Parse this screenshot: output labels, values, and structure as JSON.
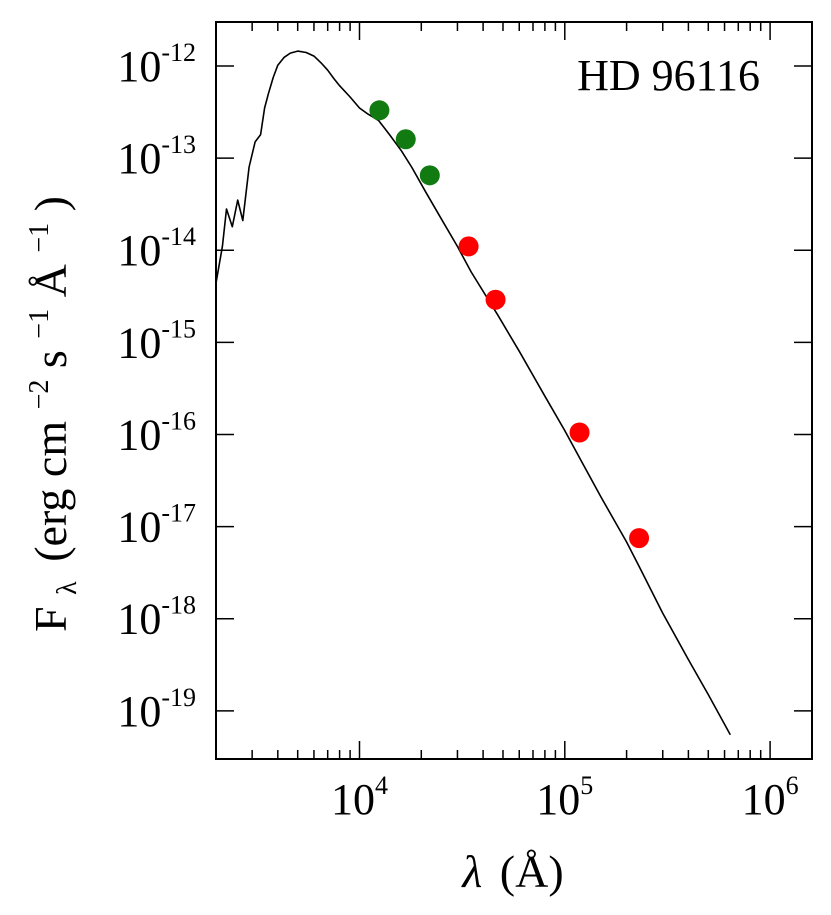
{
  "chart_data": {
    "type": "scatter",
    "title": "",
    "annotation": "HD 96116",
    "xlabel": {
      "symbol": "λ",
      "unit": "(Å)"
    },
    "ylabel": {
      "symbol": "F",
      "sub": "λ",
      "main": "(erg cm",
      "e1": "−2",
      "s": " s",
      "e2": "−1",
      "ang": " Å",
      "e3": "−1",
      "close": ")"
    },
    "xscale": "log",
    "yscale": "log",
    "xlim": [
      2000,
      1600000
    ],
    "ylim": [
      3e-20,
      3e-12
    ],
    "x_ticks": [
      {
        "value": 10000,
        "base": "10",
        "exp": "4"
      },
      {
        "value": 100000,
        "base": "10",
        "exp": "5"
      },
      {
        "value": 1000000,
        "base": "10",
        "exp": "6"
      }
    ],
    "y_ticks": [
      {
        "value": 1e-12,
        "base": "10",
        "exp": "-12"
      },
      {
        "value": 1e-13,
        "base": "10",
        "exp": "-13"
      },
      {
        "value": 1e-14,
        "base": "10",
        "exp": "-14"
      },
      {
        "value": 1e-15,
        "base": "10",
        "exp": "-15"
      },
      {
        "value": 1e-16,
        "base": "10",
        "exp": "-16"
      },
      {
        "value": 1e-17,
        "base": "10",
        "exp": "-17"
      },
      {
        "value": 1e-18,
        "base": "10",
        "exp": "-18"
      },
      {
        "value": 1e-19,
        "base": "10",
        "exp": "-19"
      }
    ],
    "grid": false,
    "model_sed": {
      "color": "#000000",
      "x": [
        2000,
        2150,
        2250,
        2400,
        2550,
        2700,
        2900,
        3100,
        3300,
        3450,
        3600,
        3800,
        4000,
        4300,
        4600,
        5000,
        5500,
        6000,
        6500,
        7000,
        7500,
        8000,
        9000,
        10000,
        11000,
        12400,
        14000,
        16000,
        18000,
        21000,
        25000,
        30000,
        35000,
        47000,
        60000,
        80000,
        100000,
        120000,
        150000,
        200000,
        230000,
        300000,
        400000,
        500000,
        640000
      ],
      "y": [
        4.4e-15,
        1.1e-14,
        2.8e-14,
        1.8e-14,
        3.5e-14,
        2.1e-14,
        8e-14,
        1.5e-13,
        1.8e-13,
        3.5e-13,
        5e-13,
        7.5e-13,
        1.02e-12,
        1.24e-12,
        1.38e-12,
        1.45e-12,
        1.4e-12,
        1.28e-12,
        1.08e-12,
        9e-13,
        7.3e-13,
        6.1e-13,
        4.6e-13,
        3.5e-13,
        3e-13,
        2.55e-13,
        1.8e-13,
        1.2e-13,
        7.9e-14,
        4.3e-14,
        2.2e-14,
        1.1e-14,
        5.8e-15,
        2e-15,
        8e-16,
        2.6e-16,
        1.1e-16,
        5.2e-17,
        2.1e-17,
        6.8e-18,
        3.7e-18,
        1.15e-18,
        3.6e-19,
        1.5e-19,
        5.5e-20
      ]
    },
    "series": [
      {
        "color": "#117a11",
        "x": [
          12500,
          16800,
          22000
        ],
        "y": [
          3.3e-13,
          1.6e-13,
          6.5e-14
        ]
      },
      {
        "color": "#ff0000",
        "x": [
          34000,
          46000,
          118000,
          230000
        ],
        "y": [
          1.1e-14,
          2.9e-15,
          1.05e-16,
          7.5e-18
        ]
      }
    ]
  }
}
